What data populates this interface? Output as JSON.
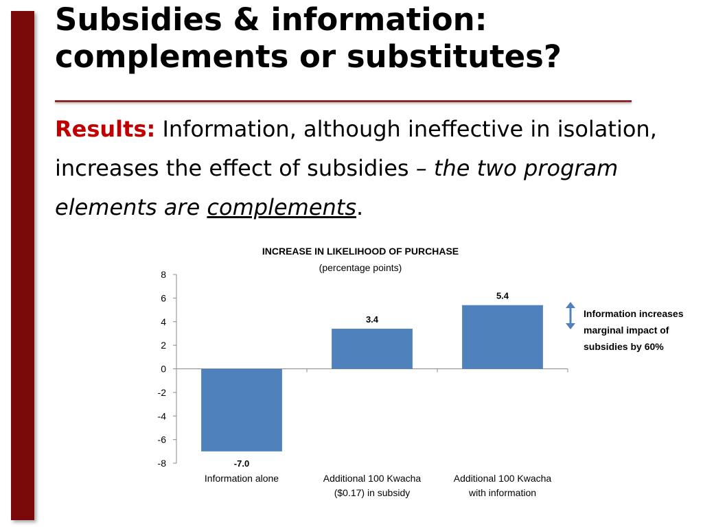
{
  "slide": {
    "title_line1": "Subsidies & information:",
    "title_line2": "complements or substitutes?",
    "results_label": "Results:",
    "results_text": " Information, although ineffective in isolation, increases the effect of subsidies – ",
    "results_italic": "the two program elements are ",
    "results_underlined": "complements",
    "results_end": "."
  },
  "chart_data": {
    "type": "bar",
    "title": "INCREASE IN LIKELIHOOD OF PURCHASE",
    "subtitle": "(percentage points)",
    "categories": [
      [
        "Information alone"
      ],
      [
        "Additional 100 Kwacha",
        "($0.17) in subsidy"
      ],
      [
        "Additional 100 Kwacha",
        "with information"
      ]
    ],
    "values": [
      -7.0,
      3.4,
      5.4
    ],
    "data_labels": [
      "-7.0",
      "3.4",
      "5.4"
    ],
    "ylim": [
      -8,
      8
    ],
    "yticks": [
      8,
      6,
      4,
      2,
      0,
      -2,
      -4,
      -6,
      -8
    ],
    "bar_color": "#4f81bd",
    "grid": false,
    "annotation": "Information increases marginal impact of subsidies by 60%",
    "annotation_arrow_color": "#4f81bd"
  }
}
